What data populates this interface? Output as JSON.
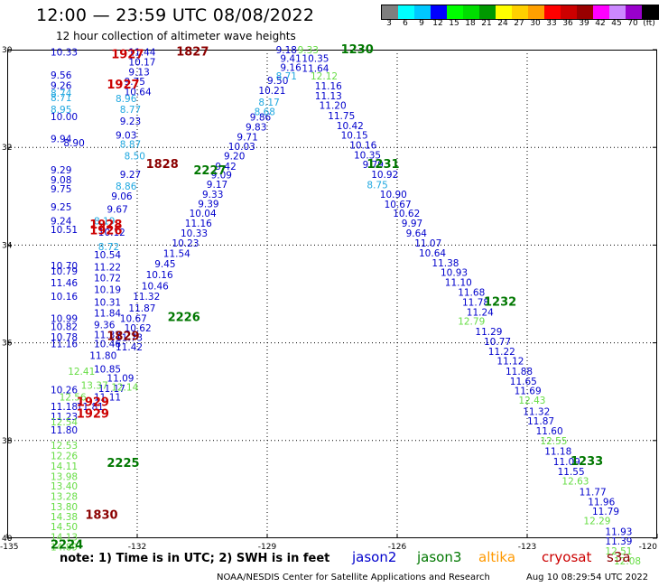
{
  "header": {
    "title": "12:00 — 23:59 UTC 08/08/2022",
    "subtitle": "12 hour collection of altimeter wave heights"
  },
  "colorbar": {
    "colors": [
      "#7f7f7f",
      "#00ffff",
      "#00c8ff",
      "#0000ff",
      "#00ff00",
      "#00dd00",
      "#009900",
      "#ffff00",
      "#ffd000",
      "#ffa000",
      "#ff0000",
      "#cc0000",
      "#990000",
      "#ff00ff",
      "#cc88ff",
      "#9900cc",
      "#000000"
    ],
    "labels": [
      "3",
      "6",
      "9",
      "12",
      "15",
      "18",
      "21",
      "24",
      "27",
      "30",
      "33",
      "36",
      "39",
      "42",
      "45",
      "70",
      "(ft)"
    ]
  },
  "axes": {
    "y_labels": [
      "30",
      "32",
      "34",
      "36",
      "38",
      "40"
    ],
    "x_labels": [
      "-135",
      "-132",
      "-129",
      "-126",
      "-123",
      "-120"
    ]
  },
  "chart_data": {
    "type": "scatter",
    "xlim": [
      -135,
      -120
    ],
    "ylim": [
      -40,
      -30
    ],
    "grid": true,
    "colors": {
      "jason2": "#0000cc",
      "jason3": "#007700",
      "altika": "#ff9900",
      "cryosat": "#cc0000",
      "s3a": "#8b0000",
      "light_blue": "#20a8e0",
      "light_green": "#66dd44"
    },
    "series": [
      {
        "name": "jason2",
        "points": [
          [
            -134.0,
            -30.05,
            "10.33"
          ],
          [
            -134.0,
            -31.37,
            "10.00"
          ],
          [
            -134.0,
            -31.82,
            "9.94"
          ],
          [
            -133.7,
            -31.9,
            "8.90"
          ],
          [
            -134.0,
            -32.46,
            "9.29"
          ],
          [
            -134.0,
            -32.66,
            "9.08"
          ],
          [
            -134.0,
            -32.85,
            "9.75"
          ],
          [
            -134.0,
            -33.22,
            "9.25"
          ],
          [
            -134.0,
            -33.5,
            "9.24"
          ],
          [
            -134.0,
            -33.68,
            "10.51"
          ],
          [
            -134.0,
            -34.42,
            "10.70"
          ],
          [
            -134.0,
            -34.53,
            "10.79"
          ],
          [
            -134.0,
            -34.77,
            "11.46"
          ],
          [
            -134.0,
            -35.05,
            "10.16"
          ],
          [
            -134.0,
            -35.5,
            "10.99"
          ],
          [
            -134.0,
            -35.67,
            "10.82"
          ],
          [
            -134.0,
            -35.88,
            "10.78"
          ],
          [
            -134.0,
            -36.02,
            "11.16"
          ],
          [
            -133.0,
            -36.02,
            "10.46"
          ],
          [
            -133.0,
            -35.83,
            "11.32"
          ],
          [
            -133.0,
            -35.63,
            "9.36"
          ],
          [
            -133.0,
            -35.39,
            "11.84"
          ],
          [
            -133.0,
            -35.17,
            "10.31"
          ],
          [
            -133.0,
            -34.91,
            "10.19"
          ],
          [
            -133.0,
            -34.67,
            "10.72"
          ],
          [
            -133.0,
            -34.45,
            "11.22"
          ],
          [
            -133.0,
            -34.2,
            "10.54"
          ],
          [
            -133.0,
            -36.53,
            "10.85"
          ],
          [
            -134.0,
            -36.96,
            "10.26"
          ],
          [
            -134.0,
            -37.3,
            "11.18"
          ],
          [
            -134.0,
            -37.5,
            "11.23"
          ],
          [
            -134.0,
            -37.78,
            "11.80"
          ],
          [
            -133.4,
            -37.3,
            "11.81"
          ],
          [
            -133.0,
            -37.11,
            "11.11"
          ],
          [
            -132.9,
            -36.93,
            "11.17"
          ],
          [
            -132.7,
            -36.72,
            "11.09"
          ],
          [
            -133.1,
            -36.26,
            "11.80"
          ],
          [
            -132.5,
            -36.08,
            "11.42"
          ],
          [
            -132.5,
            -35.89,
            "11.73"
          ],
          [
            -132.3,
            -35.69,
            "10.62"
          ],
          [
            -132.4,
            -35.5,
            "10.67"
          ],
          [
            -132.2,
            -35.29,
            "11.87"
          ],
          [
            -132.1,
            -35.05,
            "11.32"
          ],
          [
            -131.9,
            -34.83,
            "10.46"
          ],
          [
            -131.8,
            -34.6,
            "10.16"
          ],
          [
            -131.6,
            -34.38,
            "9.45"
          ],
          [
            -131.4,
            -34.17,
            "11.54"
          ],
          [
            -131.2,
            -33.96,
            "10.23"
          ],
          [
            -131.0,
            -33.75,
            "10.33"
          ],
          [
            -130.9,
            -33.55,
            "11.16"
          ],
          [
            -130.8,
            -33.35,
            "10.04"
          ],
          [
            -130.6,
            -33.15,
            "9.39"
          ],
          [
            -130.5,
            -32.96,
            "9.33"
          ],
          [
            -130.4,
            -32.75,
            "9.17"
          ],
          [
            -130.3,
            -32.56,
            "9.09"
          ],
          [
            -130.2,
            -32.38,
            "9.42"
          ],
          [
            -130.0,
            -32.17,
            "9.20"
          ],
          [
            -129.9,
            -31.98,
            "10.03"
          ],
          [
            -129.7,
            -31.78,
            "9.71"
          ],
          [
            -129.5,
            -31.58,
            "9.83"
          ],
          [
            -129.4,
            -31.38,
            "9.86"
          ],
          [
            -129.2,
            -30.83,
            "10.21"
          ],
          [
            -129.0,
            -30.63,
            "9.50"
          ],
          [
            -128.8,
            -30.0,
            "9.18"
          ],
          [
            -128.7,
            -30.18,
            "9.41"
          ],
          [
            -128.7,
            -30.36,
            "9.16"
          ],
          [
            -132.2,
            -30.05,
            "11.44"
          ],
          [
            -132.2,
            -30.25,
            "10.17"
          ],
          [
            -132.2,
            -30.45,
            "9.13"
          ],
          [
            -132.3,
            -30.65,
            "9.75"
          ],
          [
            -132.3,
            -30.86,
            "10.64"
          ],
          [
            -132.4,
            -31.46,
            "9.23"
          ],
          [
            -132.5,
            -31.75,
            "9.03"
          ],
          [
            -132.4,
            -32.55,
            "9.27"
          ],
          [
            -132.6,
            -32.99,
            "9.06"
          ],
          [
            -132.7,
            -33.26,
            "9.67"
          ],
          [
            -132.9,
            -33.73,
            "10.12"
          ],
          [
            -134.0,
            -30.52,
            "9.56"
          ],
          [
            -134.0,
            -30.73,
            "9.26"
          ],
          [
            -128.2,
            -30.18,
            "10.35"
          ],
          [
            -128.2,
            -30.38,
            "11.64"
          ],
          [
            -127.9,
            -30.74,
            "11.16"
          ],
          [
            -127.9,
            -30.94,
            "11.13"
          ],
          [
            -127.8,
            -31.14,
            "11.20"
          ],
          [
            -127.6,
            -31.35,
            "11.75"
          ],
          [
            -127.4,
            -31.55,
            "10.42"
          ],
          [
            -127.3,
            -31.75,
            "10.15"
          ],
          [
            -127.1,
            -31.95,
            "10.16"
          ],
          [
            -127.0,
            -32.15,
            "10.35"
          ],
          [
            -126.8,
            -32.35,
            "9.79"
          ],
          [
            -126.6,
            -32.55,
            "10.92"
          ],
          [
            -126.4,
            -32.96,
            "10.90"
          ],
          [
            -126.3,
            -33.16,
            "10.67"
          ],
          [
            -126.1,
            -33.35,
            "10.62"
          ],
          [
            -125.9,
            -33.55,
            "9.97"
          ],
          [
            -125.8,
            -33.75,
            "9.64"
          ],
          [
            -125.6,
            -33.96,
            "11.07"
          ],
          [
            -125.5,
            -34.16,
            "10.64"
          ],
          [
            -125.2,
            -34.36,
            "11.38"
          ],
          [
            -125.0,
            -34.56,
            "10.93"
          ],
          [
            -124.9,
            -34.76,
            "11.10"
          ],
          [
            -124.6,
            -34.96,
            "11.68"
          ],
          [
            -124.5,
            -35.17,
            "11.78"
          ],
          [
            -124.4,
            -35.37,
            "11.24"
          ],
          [
            -124.2,
            -35.77,
            "11.29"
          ],
          [
            -124.0,
            -35.97,
            "10.77"
          ],
          [
            -123.9,
            -36.17,
            "11.22"
          ],
          [
            -123.7,
            -36.37,
            "11.12"
          ],
          [
            -123.5,
            -36.58,
            "11.88"
          ],
          [
            -123.4,
            -36.78,
            "11.65"
          ],
          [
            -123.3,
            -36.98,
            "11.69"
          ],
          [
            -123.1,
            -37.4,
            "11.32"
          ],
          [
            -123.0,
            -37.6,
            "11.87"
          ],
          [
            -122.8,
            -37.8,
            "11.60"
          ],
          [
            -122.6,
            -38.22,
            "11.18"
          ],
          [
            -122.4,
            -38.43,
            "11.09"
          ],
          [
            -122.3,
            -38.63,
            "11.55"
          ],
          [
            -121.8,
            -39.05,
            "11.77"
          ],
          [
            -121.6,
            -39.25,
            "11.96"
          ],
          [
            -121.5,
            -39.45,
            "11.79"
          ],
          [
            -121.2,
            -39.86,
            "11.93"
          ],
          [
            -121.2,
            -40.06,
            "11.39"
          ]
        ]
      },
      {
        "name": "light-blue",
        "points": [
          [
            -134.0,
            -30.89,
            "8.74"
          ],
          [
            -134.0,
            -30.98,
            "8.71"
          ],
          [
            -134.0,
            -31.22,
            "8.95"
          ],
          [
            -132.5,
            -31.0,
            "8.96"
          ],
          [
            -132.4,
            -31.22,
            "8.77"
          ],
          [
            -132.4,
            -31.93,
            "8.87"
          ],
          [
            -132.3,
            -32.17,
            "8.50"
          ],
          [
            -132.5,
            -32.79,
            "8.86"
          ],
          [
            -133.0,
            -33.5,
            "8.19"
          ],
          [
            -132.9,
            -34.03,
            "8.72"
          ],
          [
            -129.2,
            -31.07,
            "8.17"
          ],
          [
            -129.3,
            -31.27,
            "8.68"
          ],
          [
            -128.8,
            -30.54,
            "8.71"
          ],
          [
            -126.7,
            -32.76,
            "8.75"
          ]
        ]
      },
      {
        "name": "light-green",
        "points": [
          [
            -128.3,
            -30.0,
            "9.33"
          ],
          [
            -128.0,
            -30.54,
            "12.12"
          ],
          [
            -124.6,
            -35.55,
            "12.79"
          ],
          [
            -123.2,
            -37.17,
            "12.43"
          ],
          [
            -122.7,
            -38.0,
            "12.55"
          ],
          [
            -122.2,
            -38.83,
            "12.63"
          ],
          [
            -121.7,
            -39.64,
            "12.29"
          ],
          [
            -121.2,
            -40.26,
            "12.51"
          ],
          [
            -121.0,
            -40.46,
            "12.08"
          ],
          [
            -132.6,
            -36.9,
            "12.14"
          ],
          [
            -133.6,
            -36.58,
            "12.41"
          ],
          [
            -133.3,
            -36.87,
            "13.37"
          ],
          [
            -133.8,
            -37.11,
            "12.56"
          ],
          [
            -134.0,
            -37.62,
            "12.54"
          ],
          [
            -134.0,
            -38.1,
            "12.53"
          ],
          [
            -134.0,
            -38.31,
            "12.26"
          ],
          [
            -134.0,
            -38.52,
            "14.11"
          ],
          [
            -134.0,
            -38.73,
            "13.98"
          ],
          [
            -134.0,
            -38.93,
            "13.40"
          ],
          [
            -134.0,
            -39.14,
            "13.28"
          ],
          [
            -134.0,
            -39.35,
            "13.80"
          ],
          [
            -134.0,
            -39.56,
            "14.38"
          ],
          [
            -134.0,
            -39.76,
            "14.50"
          ],
          [
            -134.0,
            -39.97,
            "14.13"
          ],
          [
            -134.0,
            -40.18,
            "14.89"
          ]
        ]
      },
      {
        "name": "jason3",
        "points": [
          [
            -127.3,
            -30.0,
            "1230"
          ],
          [
            -126.7,
            -32.35,
            "1231"
          ],
          [
            -124.0,
            -35.17,
            "1232"
          ],
          [
            -122.0,
            -38.43,
            "1233"
          ],
          [
            -130.7,
            -32.48,
            "2227"
          ],
          [
            -131.3,
            -35.48,
            "2226"
          ],
          [
            -132.7,
            -38.47,
            "2225"
          ],
          [
            -134.0,
            -40.14,
            "2224"
          ]
        ]
      },
      {
        "name": "cryosat",
        "points": [
          [
            -132.6,
            -30.1,
            "1927"
          ],
          [
            -132.7,
            -30.72,
            "1927"
          ],
          [
            -133.1,
            -33.59,
            "1928"
          ],
          [
            -133.1,
            -33.71,
            "1926"
          ],
          [
            -133.4,
            -37.22,
            "1929"
          ],
          [
            -133.4,
            -37.46,
            "1929"
          ]
        ]
      },
      {
        "name": "s3a",
        "points": [
          [
            -131.1,
            -30.05,
            "1827"
          ],
          [
            -131.8,
            -32.35,
            "1828"
          ],
          [
            -132.7,
            -35.87,
            "1829"
          ],
          [
            -133.2,
            -39.53,
            "1830"
          ]
        ]
      }
    ]
  },
  "footer": {
    "note": "note:  1) Time is in UTC; 2) SWH is in feet",
    "legend": [
      {
        "label": "jason2",
        "color": "#0000cc"
      },
      {
        "label": "jason3",
        "color": "#007700"
      },
      {
        "label": "altika",
        "color": "#ff9900"
      },
      {
        "label": "cryosat",
        "color": "#cc0000"
      },
      {
        "label": "s3a",
        "color": "#8b0000"
      }
    ],
    "credit": "NOAA/NESDIS Center for Satellite Applications and Research",
    "timestamp": "Aug 10 08:29:54 UTC 2022"
  }
}
